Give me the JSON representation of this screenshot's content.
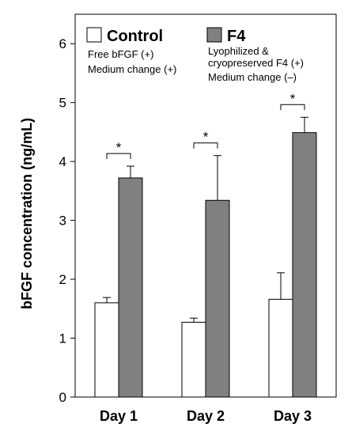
{
  "chart_data": {
    "type": "bar",
    "categories": [
      "Day 1",
      "Day 2",
      "Day 3"
    ],
    "series": [
      {
        "name": "Control",
        "values": [
          1.6,
          1.27,
          1.66
        ],
        "errors": [
          0.09,
          0.07,
          0.45
        ],
        "color": "#ffffff"
      },
      {
        "name": "F4",
        "values": [
          3.72,
          3.34,
          4.49
        ],
        "errors": [
          0.2,
          0.76,
          0.26
        ],
        "color": "#808080"
      }
    ],
    "ylabel": "bFGF concentration (ng/mL)",
    "ylim": [
      0,
      6.5
    ],
    "yticks": [
      "0",
      "1",
      "2",
      "3",
      "4",
      "5",
      "6"
    ],
    "grid": false,
    "legend_position": "top",
    "legend": [
      {
        "title": "Control",
        "lines": [
          "Free bFGF (+)",
          "Medium change (+)"
        ]
      },
      {
        "title": "F4",
        "lines": [
          "Lyophilized &",
          "cryopreserved F4 (+)",
          "Medium change (–)"
        ]
      }
    ],
    "significance_label": "*"
  }
}
